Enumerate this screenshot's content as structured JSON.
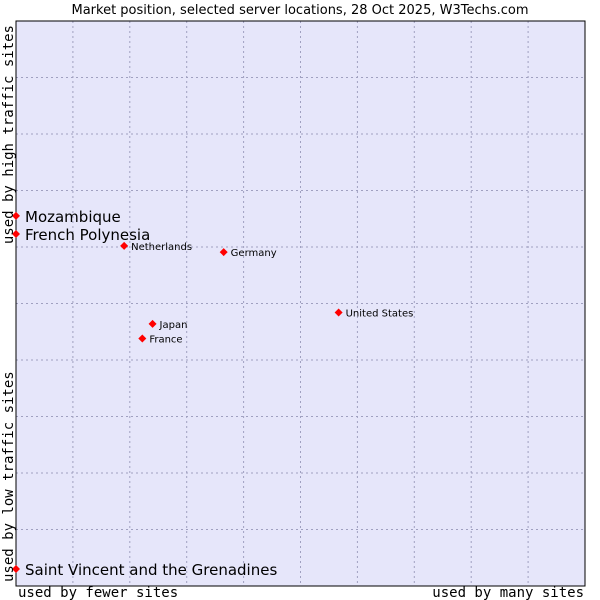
{
  "chart_data": {
    "type": "scatter",
    "title": "Market position, selected server locations, 28 Oct 2025, W3Techs.com",
    "x_axis": {
      "left_label": "used by fewer sites",
      "right_label": "used by many sites"
    },
    "y_axis": {
      "bottom_label": "used by low traffic sites",
      "top_label": "used by high traffic sites"
    },
    "xlim": [
      0,
      100
    ],
    "ylim": [
      0,
      100
    ],
    "grid": true,
    "colors": {
      "plot_bg": "#e6e6fa",
      "grid": "#a0a0c0",
      "marker": "#ff0000",
      "border": "#000000"
    },
    "points": [
      {
        "label": "Mozambique",
        "x": 0.0,
        "y": 65.5,
        "size": "large"
      },
      {
        "label": "French Polynesia",
        "x": 0.0,
        "y": 62.3,
        "size": "large"
      },
      {
        "label": "Netherlands",
        "x": 19.0,
        "y": 60.2,
        "size": "small"
      },
      {
        "label": "Germany",
        "x": 36.5,
        "y": 59.1,
        "size": "small"
      },
      {
        "label": "United States",
        "x": 56.7,
        "y": 48.4,
        "size": "small"
      },
      {
        "label": "Japan",
        "x": 24.0,
        "y": 46.4,
        "size": "small"
      },
      {
        "label": "France",
        "x": 22.2,
        "y": 43.8,
        "size": "small"
      },
      {
        "label": "Saint Vincent and the Grenadines",
        "x": 0.0,
        "y": 3.0,
        "size": "large"
      }
    ]
  }
}
